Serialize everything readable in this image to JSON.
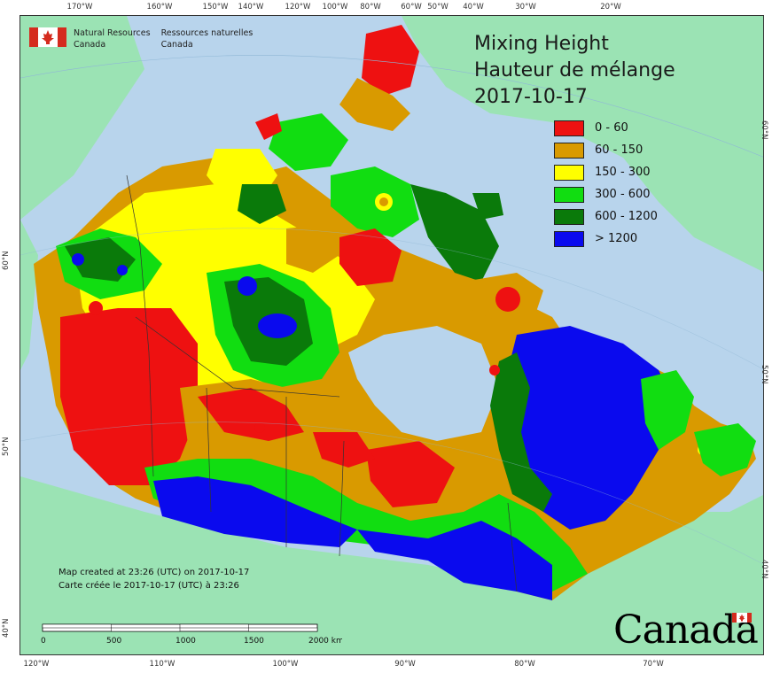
{
  "title": {
    "line1": "Mixing Height",
    "line2": "Hauteur de mélange",
    "date": "2017-10-17"
  },
  "legend": [
    {
      "label": "0 - 60",
      "color": "#ee1111"
    },
    {
      "label": "60 - 150",
      "color": "#d99a00"
    },
    {
      "label": "150 - 300",
      "color": "#ffff00"
    },
    {
      "label": "300 - 600",
      "color": "#11dd11"
    },
    {
      "label": "600 - 1200",
      "color": "#0a7a0a"
    },
    {
      "label": "> 1200",
      "color": "#0a0aee"
    }
  ],
  "agency": {
    "en_line1": "Natural Resources",
    "en_line2": "Canada",
    "fr_line1": "Ressources naturelles",
    "fr_line2": "Canada"
  },
  "created": {
    "en": "Map created at 23:26 (UTC) on 2017-10-17",
    "fr": "Carte créée le 2017-10-17 (UTC) à 23:26"
  },
  "scale": {
    "labels": [
      "0",
      "500",
      "1000",
      "1500",
      "2000 km"
    ]
  },
  "wordmark": "Canada",
  "ticks": {
    "top": [
      "170°W",
      "160°W",
      "150°W",
      "140°W",
      "120°W",
      "100°W",
      "80°W",
      "60°W",
      "50°W",
      "40°W",
      "30°W",
      "20°W"
    ],
    "bottom": [
      "120°W",
      "110°W",
      "100°W",
      "90°W",
      "80°W",
      "70°W"
    ],
    "left": [
      "60°N",
      "50°N",
      "40°N"
    ],
    "right": [
      "60°N",
      "50°N",
      "40°N"
    ]
  },
  "colors": {
    "ocean": "#b8d4ec",
    "land_outside": "#9be3b4"
  }
}
